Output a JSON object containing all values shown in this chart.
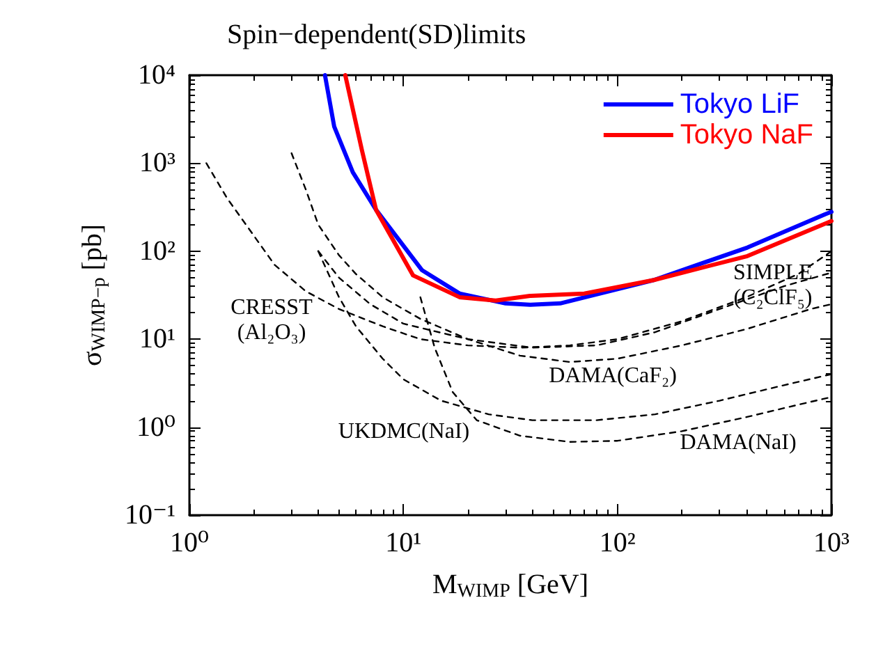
{
  "chart_data": {
    "type": "line",
    "title": "Spin−dependent(SD)limits",
    "xlabel": "M$_{WIMP}$ [GeV]",
    "ylabel": "σ$_{WIMP−p}$ [pb]",
    "log": "xy",
    "grid": false,
    "legend": "top right",
    "marker": "none",
    "xlim": [
      1,
      1000
    ],
    "ylim": [
      0.1,
      10000
    ],
    "xticks": [
      {
        "value": 1,
        "label": "10⁰"
      },
      {
        "value": 10,
        "label": "10¹"
      },
      {
        "value": 100,
        "label": "10²"
      },
      {
        "value": 1000,
        "label": "10³"
      }
    ],
    "yticks": [
      {
        "value": 0.1,
        "label": "10⁻¹"
      },
      {
        "value": 1,
        "label": "10⁰"
      },
      {
        "value": 10,
        "label": "10¹"
      },
      {
        "value": 100,
        "label": "10²"
      },
      {
        "value": 1000,
        "label": "10³"
      },
      {
        "value": 10000,
        "label": "10⁴"
      }
    ],
    "series": [
      {
        "name": "Tokyo LiF",
        "color": "#0000ff",
        "line_style": "solid",
        "x": [
          4.3,
          4.75,
          5.8,
          7.45,
          12.2,
          18.3,
          30,
          39,
          54,
          148,
          405,
          935,
          1000
        ],
        "values": [
          10000,
          2600,
          790,
          295,
          61,
          33,
          25.5,
          24.6,
          25.5,
          47,
          110,
          263,
          280
        ]
      },
      {
        "name": "Tokyo NaF",
        "color": "#ff0000",
        "line_style": "solid",
        "x": [
          5.35,
          6.4,
          7.45,
          11.1,
          18.3,
          27,
          39,
          70,
          148,
          405,
          1000
        ],
        "values": [
          10000,
          1400,
          295,
          53,
          30,
          27.5,
          31,
          33,
          47,
          88,
          220
        ]
      },
      {
        "color": "#000000",
        "line_style": "dashed",
        "x": [
          1.2,
          1.5,
          2,
          2.5,
          3.5,
          5,
          8,
          12,
          20,
          35,
          60,
          100,
          200,
          400,
          700,
          1000
        ],
        "values": [
          1000,
          400,
          150,
          70,
          35,
          22,
          14,
          10,
          8.5,
          8,
          8.5,
          10,
          16,
          30,
          55,
          100
        ]
      },
      {
        "color": "#000000",
        "line_style": "dashed",
        "x": [
          4,
          5,
          7,
          10,
          20,
          40,
          80,
          150,
          300,
          600,
          1000
        ],
        "values": [
          100,
          50,
          25,
          15,
          10,
          8,
          8.5,
          12,
          22,
          40,
          57
        ]
      },
      {
        "color": "#000000",
        "line_style": "dashed",
        "x": [
          3,
          3.5,
          4,
          5,
          6,
          8,
          12,
          20,
          35,
          60,
          100,
          200,
          400,
          800,
          1000
        ],
        "values": [
          1300,
          500,
          200,
          90,
          55,
          30,
          17,
          10,
          6.5,
          5.5,
          6,
          8.5,
          13,
          22,
          25
        ]
      },
      {
        "color": "#000000",
        "line_style": "dashed",
        "x": [
          4,
          5,
          6,
          8,
          10,
          15,
          25,
          40,
          80,
          150,
          300,
          600,
          1000
        ],
        "values": [
          100,
          30,
          14,
          6,
          3.5,
          2,
          1.4,
          1.2,
          1.2,
          1.4,
          2,
          3,
          4
        ]
      },
      {
        "color": "#000000",
        "line_style": "dashed",
        "x": [
          12,
          14,
          17,
          22,
          35,
          60,
          100,
          200,
          400,
          700,
          1000
        ],
        "values": [
          30,
          8,
          2.5,
          1.2,
          0.8,
          0.68,
          0.7,
          0.9,
          1.3,
          1.8,
          2.2
        ]
      }
    ],
    "annotations": [
      "CRESST\n(Al₂O₃)",
      "UKDMC(NaI)",
      "DAMA(CaF₂)",
      "DAMA(NaI)",
      "SIMPLE\n(C₂ClF₅)"
    ]
  }
}
